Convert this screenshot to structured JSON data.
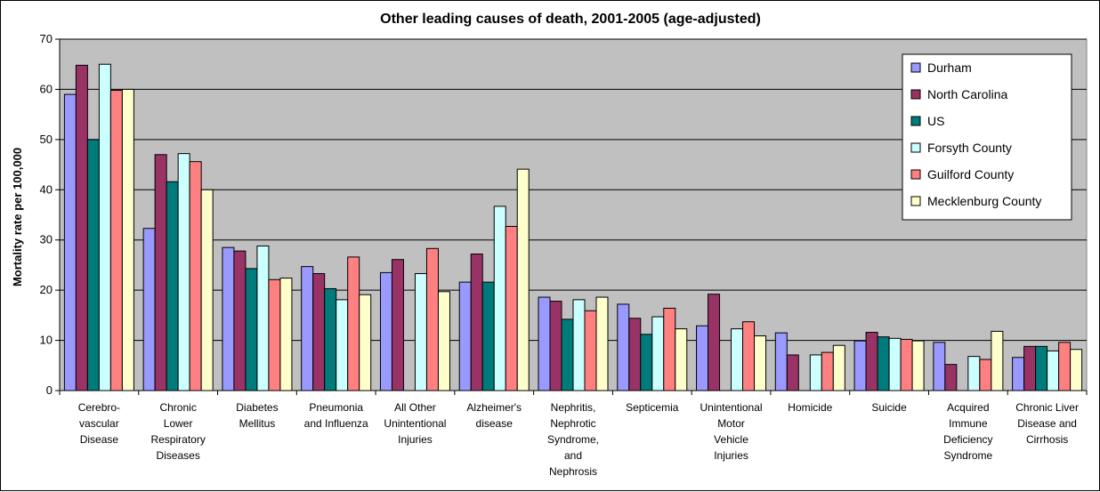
{
  "chart_data": {
    "type": "bar",
    "title": "Other leading causes of death, 2001-2005 (age-adjusted)",
    "xlabel": "",
    "ylabel": "Mortality rate per 100,000",
    "ylim": [
      0,
      70
    ],
    "yticks": [
      0,
      10,
      20,
      30,
      40,
      50,
      60,
      70
    ],
    "grid": true,
    "legend_position": "top-right",
    "categories": [
      [
        "Cerebro-",
        "vascular",
        "Disease"
      ],
      [
        "Chronic",
        "Lower",
        "Respiratory",
        "Diseases"
      ],
      [
        "Diabetes",
        "Mellitus"
      ],
      [
        "Pneumonia",
        "and Influenza"
      ],
      [
        "All Other",
        "Unintentional",
        "Injuries"
      ],
      [
        "Alzheimer's",
        "disease"
      ],
      [
        "Nephritis,",
        "Nephrotic",
        "Syndrome,",
        "and",
        "Nephrosis"
      ],
      [
        "Septicemia"
      ],
      [
        "Unintentional",
        "Motor",
        "Vehicle",
        "Injuries"
      ],
      [
        "Homicide"
      ],
      [
        "Suicide"
      ],
      [
        "Acquired",
        "Immune",
        "Deficiency",
        "Syndrome"
      ],
      [
        "Chronic Liver",
        "Disease and",
        "Cirrhosis"
      ]
    ],
    "series": [
      {
        "name": "Durham",
        "color": "#9999FF",
        "values": [
          59.0,
          32.3,
          28.5,
          24.7,
          23.5,
          21.6,
          18.6,
          17.2,
          12.9,
          11.5,
          9.9,
          9.6,
          6.6
        ]
      },
      {
        "name": "North Carolina",
        "color": "#993366",
        "values": [
          64.8,
          47.0,
          27.8,
          23.3,
          26.1,
          27.2,
          17.8,
          14.4,
          19.2,
          7.1,
          11.6,
          5.2,
          8.8
        ]
      },
      {
        "name": "US",
        "color": "#007B7B",
        "values": [
          50.0,
          41.6,
          24.3,
          20.3,
          0,
          21.6,
          14.2,
          11.2,
          0,
          0,
          10.7,
          0,
          8.8
        ]
      },
      {
        "name": "Forsyth County",
        "color": "#CCFFFF",
        "values": [
          65.0,
          47.2,
          28.8,
          18.1,
          23.3,
          36.7,
          18.1,
          14.7,
          12.3,
          7.1,
          10.4,
          6.8,
          7.9
        ]
      },
      {
        "name": "Guilford County",
        "color": "#FF8080",
        "values": [
          59.8,
          45.6,
          22.1,
          26.6,
          28.3,
          32.7,
          15.9,
          16.4,
          13.7,
          7.6,
          10.2,
          6.2,
          9.6
        ]
      },
      {
        "name": "Mecklenburg County",
        "color": "#FFFFCC",
        "values": [
          60.0,
          40.0,
          22.4,
          19.1,
          19.7,
          44.1,
          18.6,
          12.3,
          10.9,
          9.0,
          9.9,
          11.8,
          8.2
        ]
      }
    ],
    "colors": {
      "plot_background": "#C0C0C0",
      "grid": "#000000"
    }
  }
}
